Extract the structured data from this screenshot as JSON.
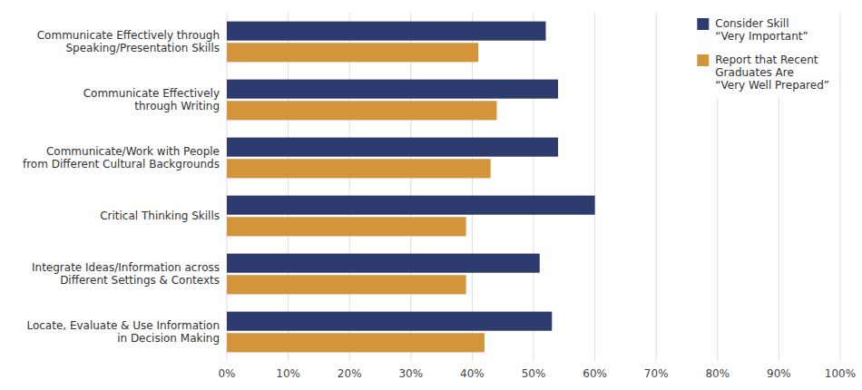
{
  "chart_data": {
    "type": "bar",
    "orientation": "horizontal",
    "categories": [
      "Communicate Effectively through\nSpeaking/Presentation Skills",
      "Communicate Effectively\nthrough Writing",
      "Communicate/Work with People\nfrom Different Cultural Backgrounds",
      "Critical Thinking Skills",
      "Integrate Ideas/Information across\nDifferent Settings & Contexts",
      "Locate, Evaluate & Use Information\nin Decision Making"
    ],
    "series": [
      {
        "name": "Consider Skill\n“Very Important”",
        "color": "#2E3B6E",
        "values": [
          52,
          54,
          54,
          60,
          51,
          53
        ]
      },
      {
        "name": "Report that Recent\nGraduates Are\n“Very Well Prepared”",
        "color": "#D4943A",
        "values": [
          41,
          44,
          43,
          39,
          39,
          42
        ]
      }
    ],
    "xlim": [
      0,
      100
    ],
    "xticks": [
      {
        "value": 0,
        "label": "0%"
      },
      {
        "value": 10,
        "label": "10%"
      },
      {
        "value": 20,
        "label": "20%"
      },
      {
        "value": 30,
        "label": "30%"
      },
      {
        "value": 40,
        "label": "40%"
      },
      {
        "value": 50,
        "label": "50%"
      },
      {
        "value": 60,
        "label": "60%"
      },
      {
        "value": 70,
        "label": "70%"
      },
      {
        "value": 80,
        "label": "80%"
      },
      {
        "value": 90,
        "label": "90%"
      },
      {
        "value": 100,
        "label": "100%"
      }
    ],
    "grid": true,
    "legend": "upper right"
  }
}
